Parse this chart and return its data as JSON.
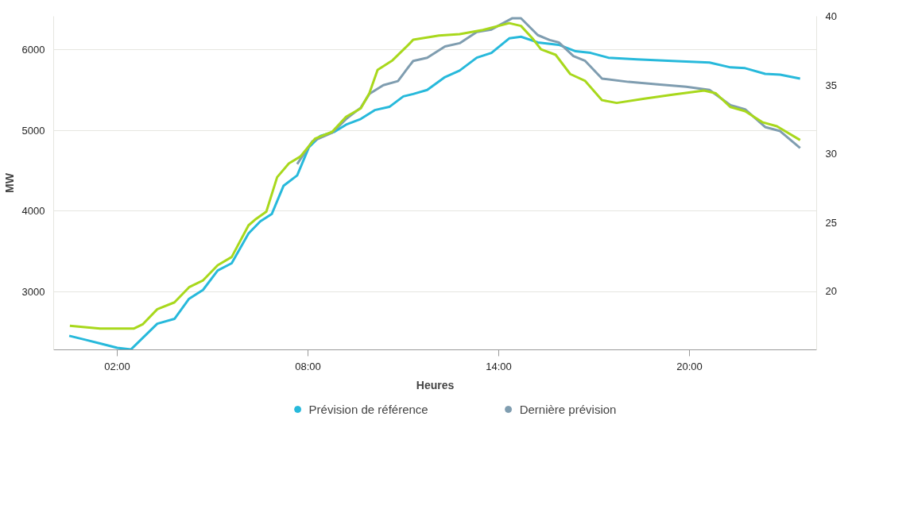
{
  "chart_data": {
    "type": "line",
    "xlabel": "Heures",
    "ylabel": "MW",
    "xlim": [
      0,
      24
    ],
    "xticks": [
      {
        "value": 2,
        "label": "02:00"
      },
      {
        "value": 8,
        "label": "08:00"
      },
      {
        "value": 14,
        "label": "14:00"
      },
      {
        "value": 20,
        "label": "20:00"
      }
    ],
    "ylim": [
      2276,
      6414
    ],
    "yticks": [
      {
        "value": 3000,
        "label": "3000"
      },
      {
        "value": 4000,
        "label": "4000"
      },
      {
        "value": 5000,
        "label": "5000"
      },
      {
        "value": 6000,
        "label": "6000"
      }
    ],
    "y2lim": [
      15.75,
      40
    ],
    "y2ticks": [
      20,
      25,
      30,
      35,
      40
    ],
    "grid": "y",
    "legend": "bottom",
    "marker": "none",
    "line_style": "solid",
    "series": [
      {
        "name": "Prévision de référence",
        "color": "#27b9db",
        "x": [
          0.49,
          1.0,
          1.51,
          2.0,
          2.43,
          3.26,
          3.8,
          4.26,
          4.7,
          5.16,
          5.6,
          6.13,
          6.5,
          6.86,
          7.23,
          7.66,
          8.03,
          8.39,
          8.83,
          9.2,
          9.66,
          10.1,
          10.56,
          11.0,
          11.31,
          11.75,
          12.31,
          12.77,
          13.31,
          13.77,
          14.33,
          14.7,
          15.23,
          15.89,
          16.42,
          16.89,
          17.45,
          18.35,
          19.46,
          20.63,
          21.29,
          21.75,
          22.38,
          22.85,
          23.48
        ],
        "values": [
          2450,
          2400,
          2350,
          2300,
          2280,
          2600,
          2660,
          2910,
          3020,
          3260,
          3350,
          3720,
          3870,
          3960,
          4310,
          4440,
          4790,
          4930,
          4980,
          5070,
          5140,
          5250,
          5290,
          5420,
          5450,
          5500,
          5660,
          5740,
          5900,
          5960,
          6140,
          6160,
          6090,
          6060,
          5980,
          5960,
          5900,
          5880,
          5860,
          5840,
          5780,
          5770,
          5700,
          5690,
          5640
        ]
      },
      {
        "name": "Dernière prévision",
        "color": "#7f9db0",
        "x": [
          7.66,
          8.13,
          8.76,
          9.2,
          9.66,
          9.93,
          10.37,
          10.83,
          11.19,
          11.31,
          11.75,
          12.31,
          12.77,
          13.31,
          13.77,
          14.43,
          14.7,
          15.23,
          15.6,
          15.89,
          16.35,
          16.72,
          17.25,
          18.08,
          19.0,
          19.9,
          20.63,
          21.29,
          21.75,
          22.38,
          22.85,
          23.48
        ],
        "values": [
          4580,
          4860,
          4970,
          5140,
          5280,
          5450,
          5560,
          5610,
          5800,
          5860,
          5900,
          6040,
          6080,
          6220,
          6250,
          6390,
          6390,
          6180,
          6120,
          6090,
          5920,
          5860,
          5640,
          5600,
          5570,
          5540,
          5500,
          5310,
          5260,
          5040,
          4990,
          4780
        ]
      },
      {
        "color": "#a8d81c",
        "axis": "y2",
        "x": [
          0.51,
          1.46,
          2.53,
          2.8,
          3.26,
          3.8,
          4.26,
          4.7,
          5.16,
          5.6,
          6.13,
          6.33,
          6.69,
          7.03,
          7.4,
          7.76,
          8.22,
          8.76,
          9.2,
          9.66,
          9.93,
          10.19,
          10.66,
          11.19,
          11.31,
          12.12,
          12.77,
          13.5,
          14.33,
          14.7,
          15.06,
          15.33,
          15.79,
          16.25,
          16.72,
          17.25,
          17.71,
          18.54,
          19.46,
          20.46,
          20.83,
          21.29,
          21.75,
          22.29,
          22.75,
          23.48
        ],
        "values": [
          17.5,
          17.3,
          17.3,
          17.6,
          18.7,
          19.2,
          20.3,
          20.8,
          21.9,
          22.5,
          24.8,
          25.2,
          25.8,
          28.3,
          29.3,
          29.8,
          31.1,
          31.6,
          32.7,
          33.3,
          34.4,
          36.1,
          36.8,
          38.0,
          38.3,
          38.6,
          38.7,
          39.0,
          39.5,
          39.3,
          38.4,
          37.6,
          37.2,
          35.8,
          35.3,
          33.9,
          33.7,
          34.0,
          34.3,
          34.6,
          34.4,
          33.4,
          33.1,
          32.3,
          32.0,
          31.0
        ]
      }
    ]
  }
}
